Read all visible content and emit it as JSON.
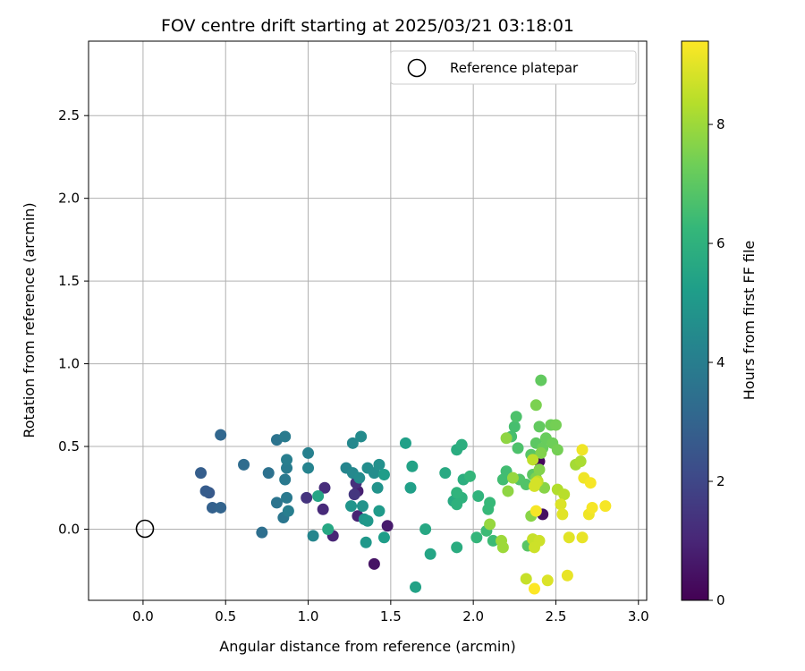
{
  "chart_data": {
    "type": "scatter",
    "title": "FOV centre drift starting at 2025/03/21 03:18:01",
    "xlabel": "Angular distance from reference (arcmin)",
    "ylabel": "Rotation from reference (arcmin)",
    "xlim": [
      -0.33,
      3.05
    ],
    "ylim": [
      -0.43,
      2.95
    ],
    "xticks": [
      0.0,
      0.5,
      1.0,
      1.5,
      2.0,
      2.5,
      3.0
    ],
    "xtick_labels": [
      "0.0",
      "0.5",
      "1.0",
      "1.5",
      "2.0",
      "2.5",
      "3.0"
    ],
    "yticks": [
      0.0,
      0.5,
      1.0,
      1.5,
      2.0,
      2.5
    ],
    "ytick_labels": [
      "0.0",
      "0.5",
      "1.0",
      "1.5",
      "2.0",
      "2.5"
    ],
    "grid": true,
    "legend": {
      "position": "top-right",
      "entries": [
        "Reference platepar"
      ]
    },
    "reference_marker": {
      "x": 0.0,
      "y": 0.0,
      "label": "Reference platepar"
    },
    "colorbar": {
      "label": "Hours from first FF file",
      "range": [
        0,
        9.4
      ],
      "ticks": [
        0,
        2,
        4,
        6,
        8
      ],
      "tick_labels": [
        "0",
        "2",
        "4",
        "6",
        "8"
      ],
      "colormap": "viridis"
    },
    "colormap_stops": [
      "#440154",
      "#482878",
      "#3e4a89",
      "#31688e",
      "#26828e",
      "#1f9e89",
      "#35b779",
      "#6ece58",
      "#b5de2b",
      "#fde725"
    ],
    "points": [
      [
        2.4,
        0.41,
        0.2
      ],
      [
        2.42,
        0.09,
        0.4
      ],
      [
        1.4,
        -0.21,
        0.5
      ],
      [
        1.48,
        0.02,
        0.7
      ],
      [
        1.3,
        0.23,
        0.8
      ],
      [
        1.3,
        0.08,
        0.9
      ],
      [
        1.15,
        -0.04,
        1.0
      ],
      [
        1.09,
        0.12,
        1.1
      ],
      [
        1.1,
        0.25,
        1.2
      ],
      [
        1.29,
        0.28,
        1.3
      ],
      [
        0.99,
        0.19,
        1.4
      ],
      [
        1.28,
        0.21,
        1.5
      ],
      [
        0.4,
        0.22,
        2.6
      ],
      [
        0.38,
        0.23,
        2.7
      ],
      [
        0.35,
        0.34,
        2.8
      ],
      [
        0.42,
        0.13,
        2.9
      ],
      [
        0.47,
        0.13,
        3.0
      ],
      [
        0.47,
        0.57,
        3.1
      ],
      [
        0.61,
        0.39,
        3.3
      ],
      [
        0.72,
        -0.02,
        3.4
      ],
      [
        0.76,
        0.34,
        3.5
      ],
      [
        0.81,
        0.16,
        3.6
      ],
      [
        0.81,
        0.54,
        3.6
      ],
      [
        0.85,
        0.07,
        3.7
      ],
      [
        0.87,
        0.19,
        3.8
      ],
      [
        0.86,
        0.3,
        3.8
      ],
      [
        0.86,
        0.56,
        3.9
      ],
      [
        0.87,
        0.37,
        3.9
      ],
      [
        0.87,
        0.42,
        4.0
      ],
      [
        0.88,
        0.11,
        4.0
      ],
      [
        1.0,
        0.46,
        4.1
      ],
      [
        1.0,
        0.37,
        4.2
      ],
      [
        1.03,
        -0.04,
        4.3
      ],
      [
        1.23,
        0.37,
        4.3
      ],
      [
        1.27,
        0.34,
        4.4
      ],
      [
        1.27,
        0.52,
        4.4
      ],
      [
        1.31,
        0.31,
        4.5
      ],
      [
        1.32,
        0.56,
        4.5
      ],
      [
        1.36,
        0.37,
        4.6
      ],
      [
        1.4,
        0.34,
        4.6
      ],
      [
        1.43,
        0.39,
        4.7
      ],
      [
        1.42,
        0.25,
        4.8
      ],
      [
        1.33,
        0.14,
        4.8
      ],
      [
        1.26,
        0.14,
        4.9
      ],
      [
        1.34,
        0.06,
        4.9
      ],
      [
        1.36,
        0.05,
        5.0
      ],
      [
        1.35,
        -0.08,
        5.0
      ],
      [
        1.43,
        0.11,
        5.1
      ],
      [
        1.46,
        0.33,
        5.2
      ],
      [
        1.46,
        -0.05,
        5.2
      ],
      [
        1.59,
        0.52,
        5.3
      ],
      [
        1.62,
        0.25,
        5.3
      ],
      [
        1.63,
        0.38,
        5.4
      ],
      [
        1.65,
        -0.35,
        5.4
      ],
      [
        1.74,
        -0.15,
        5.5
      ],
      [
        1.06,
        0.2,
        5.5
      ],
      [
        1.12,
        0.0,
        5.6
      ],
      [
        1.71,
        0.0,
        5.6
      ],
      [
        1.83,
        0.34,
        5.7
      ],
      [
        1.88,
        0.17,
        5.7
      ],
      [
        1.9,
        0.48,
        5.8
      ],
      [
        1.9,
        -0.11,
        5.8
      ],
      [
        1.93,
        0.51,
        5.9
      ],
      [
        1.94,
        0.3,
        5.9
      ],
      [
        1.93,
        0.19,
        6.0
      ],
      [
        1.9,
        0.15,
        6.0
      ],
      [
        1.9,
        0.22,
        6.1
      ],
      [
        2.03,
        0.2,
        6.1
      ],
      [
        1.98,
        0.32,
        6.2
      ],
      [
        2.02,
        -0.05,
        6.2
      ],
      [
        2.09,
        0.12,
        6.3
      ],
      [
        2.1,
        0.16,
        6.3
      ],
      [
        2.08,
        -0.01,
        6.4
      ],
      [
        2.12,
        -0.07,
        6.4
      ],
      [
        2.18,
        0.3,
        6.5
      ],
      [
        2.2,
        0.35,
        6.5
      ],
      [
        2.23,
        0.56,
        6.6
      ],
      [
        2.25,
        0.62,
        6.6
      ],
      [
        2.26,
        0.68,
        6.7
      ],
      [
        2.27,
        0.49,
        6.7
      ],
      [
        2.28,
        0.3,
        6.8
      ],
      [
        2.32,
        0.27,
        6.8
      ],
      [
        2.33,
        -0.1,
        6.9
      ],
      [
        2.35,
        0.45,
        6.9
      ],
      [
        2.36,
        0.33,
        7.0
      ],
      [
        2.38,
        0.52,
        7.0
      ],
      [
        2.4,
        0.62,
        7.1
      ],
      [
        2.41,
        0.9,
        7.1
      ],
      [
        2.42,
        0.49,
        7.2
      ],
      [
        2.44,
        0.55,
        7.2
      ],
      [
        2.47,
        0.63,
        7.3
      ],
      [
        2.48,
        0.52,
        7.3
      ],
      [
        2.5,
        0.63,
        7.4
      ],
      [
        2.51,
        0.48,
        7.4
      ],
      [
        2.38,
        0.75,
        7.5
      ],
      [
        2.38,
        0.31,
        7.5
      ],
      [
        2.4,
        0.36,
        7.6
      ],
      [
        2.41,
        0.46,
        7.6
      ],
      [
        2.43,
        0.25,
        7.7
      ],
      [
        2.35,
        0.08,
        7.7
      ],
      [
        2.2,
        0.55,
        7.8
      ],
      [
        2.21,
        0.23,
        7.8
      ],
      [
        2.24,
        0.31,
        7.9
      ],
      [
        2.1,
        0.03,
        7.9
      ],
      [
        2.17,
        -0.07,
        8.0
      ],
      [
        2.18,
        -0.11,
        8.0
      ],
      [
        2.62,
        0.39,
        8.1
      ],
      [
        2.65,
        0.41,
        8.2
      ],
      [
        2.51,
        0.24,
        8.3
      ],
      [
        2.55,
        0.21,
        8.4
      ],
      [
        2.36,
        0.42,
        8.5
      ],
      [
        2.39,
        0.29,
        8.5
      ],
      [
        2.32,
        -0.3,
        8.6
      ],
      [
        2.36,
        -0.06,
        8.6
      ],
      [
        2.4,
        -0.07,
        8.7
      ],
      [
        2.37,
        -0.11,
        8.7
      ],
      [
        2.38,
        0.28,
        8.8
      ],
      [
        2.37,
        0.26,
        8.8
      ],
      [
        2.45,
        -0.31,
        8.9
      ],
      [
        2.53,
        0.15,
        8.9
      ],
      [
        2.54,
        0.09,
        9.0
      ],
      [
        2.58,
        -0.05,
        9.0
      ],
      [
        2.57,
        -0.28,
        9.1
      ],
      [
        2.66,
        -0.05,
        9.1
      ],
      [
        2.66,
        0.48,
        9.2
      ],
      [
        2.67,
        0.31,
        9.2
      ],
      [
        2.7,
        0.09,
        9.2
      ],
      [
        2.71,
        0.28,
        9.3
      ],
      [
        2.72,
        0.13,
        9.3
      ],
      [
        2.8,
        0.14,
        9.3
      ],
      [
        2.38,
        0.11,
        9.3
      ],
      [
        2.37,
        -0.36,
        9.4
      ]
    ]
  }
}
